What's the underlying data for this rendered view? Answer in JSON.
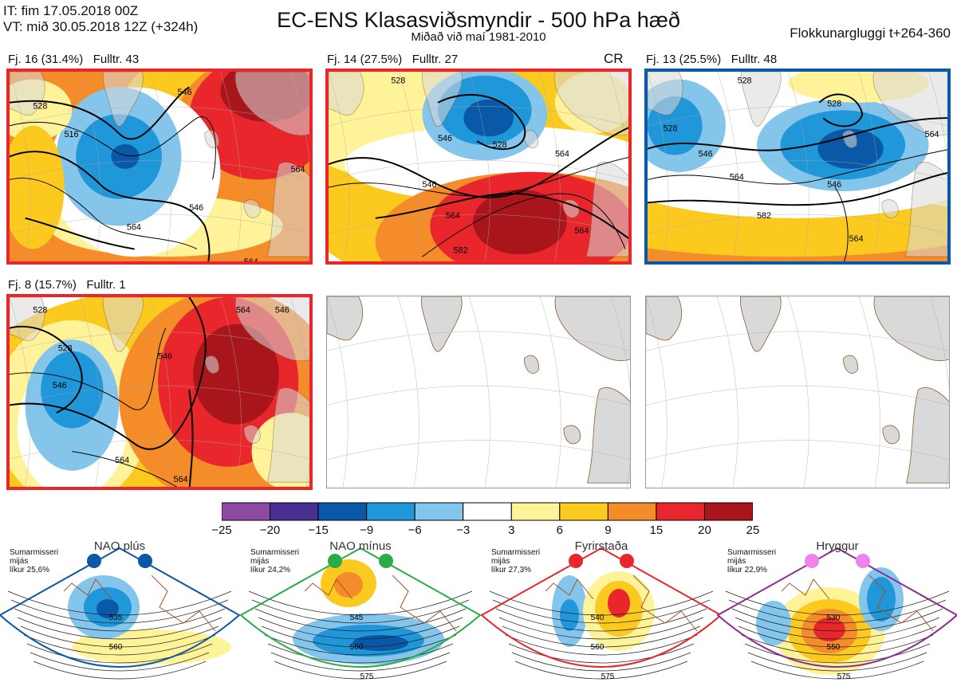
{
  "header": {
    "it": "IT: fim 17.05.2018 00Z",
    "vt": "VT: mið 30.05.2018 12Z  (+324h)",
    "title": "EC-ENS Klasasviðsmyndir - 500 hPa hæð",
    "subtitle": "Miðað við maí 1981-2010",
    "window": "Flokkunargluggi t+264-360"
  },
  "chart_data": [
    {
      "type": "heatmap",
      "title": "Fj. 16 (31.4%)   Fulltr. 43",
      "contour_labels": [
        "528",
        "516",
        "546",
        "564",
        "564",
        "546",
        "564"
      ],
      "border_color": "#e8262b"
    },
    {
      "type": "heatmap",
      "title": "Fj. 14 (27.5%)   Fulltr. 27",
      "tag": "CR",
      "contour_labels": [
        "528",
        "528",
        "546",
        "564",
        "546",
        "564",
        "582",
        "564"
      ],
      "border_color": "#e8262b"
    },
    {
      "type": "heatmap",
      "title": "Fj. 13 (25.5%)   Fulltr. 48",
      "contour_labels": [
        "528",
        "528",
        "528",
        "546",
        "546",
        "564",
        "582",
        "564",
        "564"
      ],
      "border_color": "#0a58a8"
    },
    {
      "type": "heatmap",
      "title": "Fj. 8 (15.7%)   Fulltr. 1",
      "contour_labels": [
        "528",
        "528",
        "546",
        "546",
        "564",
        "564",
        "564",
        "546"
      ],
      "border_color": "#e8262b"
    },
    {
      "type": "heatmap",
      "title": "",
      "contour_labels": []
    },
    {
      "type": "heatmap",
      "title": "",
      "contour_labels": []
    }
  ],
  "colorbar": {
    "ticks": [
      "−25",
      "−20",
      "−15",
      "−9",
      "−6",
      "−3",
      "3",
      "6",
      "9",
      "15",
      "20",
      "25"
    ],
    "colors": [
      "#8c4b9e",
      "#4b2f92",
      "#0a58a8",
      "#1f97d8",
      "#84c5eb",
      "#ffffff",
      "#fff39a",
      "#fcca1f",
      "#f48c2a",
      "#e8262b",
      "#a8161c"
    ]
  },
  "regimes": [
    {
      "name": "NAO plús",
      "season": "Sumarmisseri",
      "variable": "mijás",
      "likelihood": "líkur 25,6%",
      "color": "#0a58a8",
      "dot_color": "#0a58a8",
      "contours": [
        "535",
        "560"
      ]
    },
    {
      "name": "NAO mínus",
      "season": "Sumarmisseri",
      "variable": "mijás",
      "likelihood": "líkur 24,2%",
      "color": "#2bab48",
      "dot_color": "#2bab48",
      "contours": [
        "545",
        "560",
        "575"
      ]
    },
    {
      "name": "Fyrirstaða",
      "season": "Sumarmisseri",
      "variable": "mijás",
      "likelihood": "líkur 27,3%",
      "color": "#e8262b",
      "dot_color": "#e8262b",
      "contours": [
        "540",
        "560",
        "575"
      ]
    },
    {
      "name": "Hryggur",
      "season": "Sumarmisseri",
      "variable": "mijás",
      "likelihood": "líkur 22,9%",
      "color": "#8b2d91",
      "dot_color": "#ee82ee",
      "contours": [
        "530",
        "550",
        "575"
      ]
    }
  ]
}
